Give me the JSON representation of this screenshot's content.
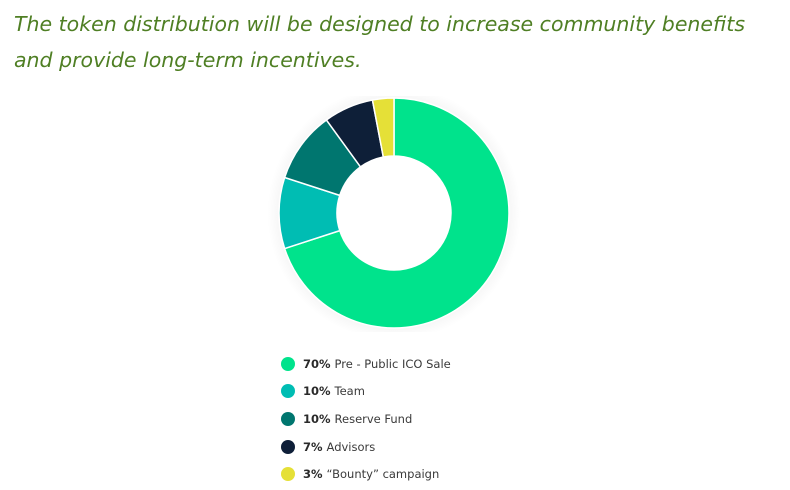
{
  "page": {
    "heading": "The token distribution will be designed to increase community benefits and provide long-term incentives."
  },
  "chart_data": {
    "type": "pie",
    "donut": true,
    "categories": [
      "Pre - Public ICO Sale",
      "Team",
      "Reserve Fund",
      "Advisors",
      "“Bounty” campaign"
    ],
    "values": [
      70,
      10,
      10,
      7,
      3
    ],
    "percent_labels": [
      "70%",
      "10%",
      "10%",
      "7%",
      "3%"
    ],
    "colors": [
      "#00e38c",
      "#00bdb3",
      "#00766f",
      "#0e1f38",
      "#e5e037"
    ],
    "legend_position": "bottom",
    "start_angle_deg": 0,
    "direction": "clockwise"
  }
}
